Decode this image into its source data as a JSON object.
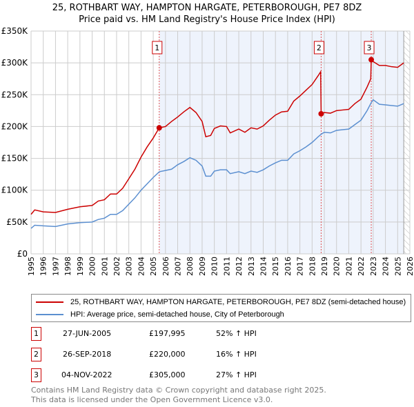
{
  "title_line1": "25, ROTHBART WAY, HAMPTON HARGATE, PETERBOROUGH, PE7 8DZ",
  "title_line2": "Price paid vs. HM Land Registry's House Price Index (HPI)",
  "chart_data": {
    "type": "line",
    "title": "25, ROTHBART WAY, HAMPTON HARGATE, PETERBOROUGH, PE7 8DZ — Price paid vs. HM Land Registry's House Price Index (HPI)",
    "xlim": [
      1995,
      2026
    ],
    "ylim": [
      0,
      350000
    ],
    "ytick_labels": [
      "£0",
      "£50K",
      "£100K",
      "£150K",
      "£200K",
      "£250K",
      "£300K",
      "£350K"
    ],
    "yticks": [
      0,
      50000,
      100000,
      150000,
      200000,
      250000,
      300000,
      350000
    ],
    "xticks": [
      1995,
      1996,
      1997,
      1998,
      1999,
      2000,
      2001,
      2002,
      2003,
      2004,
      2005,
      2006,
      2007,
      2008,
      2009,
      2010,
      2011,
      2012,
      2013,
      2014,
      2015,
      2016,
      2017,
      2018,
      2019,
      2020,
      2021,
      2022,
      2023,
      2024,
      2025,
      2026
    ],
    "grid": true,
    "shaded_range": [
      2005.49,
      2025.5
    ],
    "hatched_range": [
      2025.5,
      2026
    ],
    "colors": {
      "property": "#cc0000",
      "hpi": "#5b8fd0",
      "shade": "#eef3fc",
      "marker_line": "#e05050"
    },
    "series": [
      {
        "name": "25, ROTHBART WAY, HAMPTON HARGATE, PETERBOROUGH, PE7 8DZ (semi-detached house)",
        "x": [
          1995,
          1995.3,
          1996,
          1997,
          1998,
          1999,
          2000,
          2000.5,
          2001,
          2001.5,
          2002,
          2002.5,
          2003,
          2003.5,
          2004,
          2004.5,
          2005,
          2005.49,
          2006,
          2006.5,
          2007,
          2007.5,
          2008,
          2008.5,
          2009,
          2009.3,
          2009.7,
          2010,
          2010.5,
          2011,
          2011.3,
          2012,
          2012.5,
          2013,
          2013.5,
          2014,
          2014.5,
          2015,
          2015.5,
          2016,
          2016.5,
          2017,
          2017.5,
          2018,
          2018.5,
          2018.7,
          2018.74,
          2019,
          2019.5,
          2020,
          2020.5,
          2021,
          2021.5,
          2022,
          2022.5,
          2022.8,
          2022.84,
          2023,
          2023.5,
          2024,
          2024.5,
          2025,
          2025.5
        ],
        "y": [
          62000,
          69000,
          66000,
          65000,
          70000,
          74000,
          76000,
          83000,
          85000,
          94000,
          94000,
          103000,
          118000,
          133000,
          152000,
          168000,
          182000,
          197995,
          200000,
          208000,
          215000,
          223000,
          230000,
          222000,
          208000,
          184000,
          186000,
          197000,
          201000,
          200000,
          190000,
          196000,
          191000,
          198000,
          196000,
          201000,
          210000,
          218000,
          223000,
          224000,
          240000,
          248000,
          257000,
          266000,
          280000,
          286000,
          220000,
          222000,
          221000,
          225000,
          226000,
          227000,
          236000,
          243000,
          262000,
          275000,
          305000,
          302000,
          296000,
          296000,
          294000,
          293000,
          300000
        ]
      },
      {
        "name": "HPI: Average price, semi-detached house, City of Peterborough",
        "x": [
          1995,
          1995.3,
          1996,
          1997,
          1998,
          1999,
          2000,
          2000.5,
          2001,
          2001.5,
          2002,
          2002.5,
          2003,
          2003.5,
          2004,
          2004.5,
          2005,
          2005.5,
          2006,
          2006.5,
          2007,
          2007.5,
          2008,
          2008.5,
          2009,
          2009.3,
          2009.7,
          2010,
          2010.5,
          2011,
          2011.3,
          2012,
          2012.5,
          2013,
          2013.5,
          2014,
          2014.5,
          2015,
          2015.5,
          2016,
          2016.5,
          2017,
          2017.5,
          2018,
          2018.5,
          2018.75,
          2019,
          2019.5,
          2020,
          2020.5,
          2021,
          2021.5,
          2022,
          2022.5,
          2022.85,
          2023,
          2023.5,
          2024,
          2024.5,
          2025,
          2025.5
        ],
        "y": [
          40000,
          45000,
          44000,
          43000,
          47000,
          49000,
          50000,
          54000,
          56000,
          62000,
          62000,
          68000,
          78000,
          88000,
          100000,
          110000,
          120000,
          129000,
          131000,
          133000,
          140000,
          145000,
          151000,
          147000,
          138000,
          122000,
          122000,
          130000,
          132000,
          132000,
          126000,
          129000,
          126000,
          130000,
          128000,
          132000,
          138000,
          143000,
          147000,
          147000,
          157000,
          162000,
          168000,
          175000,
          184000,
          188000,
          191000,
          190000,
          194000,
          195000,
          196000,
          203000,
          210000,
          225000,
          238000,
          242000,
          235000,
          234000,
          233000,
          232000,
          236000
        ]
      }
    ],
    "sales": [
      {
        "label": "1",
        "x": 2005.49,
        "price": 197995
      },
      {
        "label": "2",
        "x": 2018.74,
        "price": 220000
      },
      {
        "label": "3",
        "x": 2022.84,
        "price": 305000
      }
    ]
  },
  "legend": [
    {
      "label": "25, ROTHBART WAY, HAMPTON HARGATE, PETERBOROUGH, PE7 8DZ (semi-detached house)",
      "color": "#cc0000"
    },
    {
      "label": "HPI: Average price, semi-detached house, City of Peterborough",
      "color": "#5b8fd0"
    }
  ],
  "transactions": [
    {
      "num": "1",
      "date": "27-JUN-2005",
      "price": "£197,995",
      "hpi": "52% ↑ HPI"
    },
    {
      "num": "2",
      "date": "26-SEP-2018",
      "price": "£220,000",
      "hpi": "16% ↑ HPI"
    },
    {
      "num": "3",
      "date": "04-NOV-2022",
      "price": "£305,000",
      "hpi": "27% ↑ HPI"
    }
  ],
  "footer": {
    "line1": "Contains HM Land Registry data © Crown copyright and database right 2025.",
    "line2": "This data is licensed under the Open Government Licence v3.0."
  }
}
